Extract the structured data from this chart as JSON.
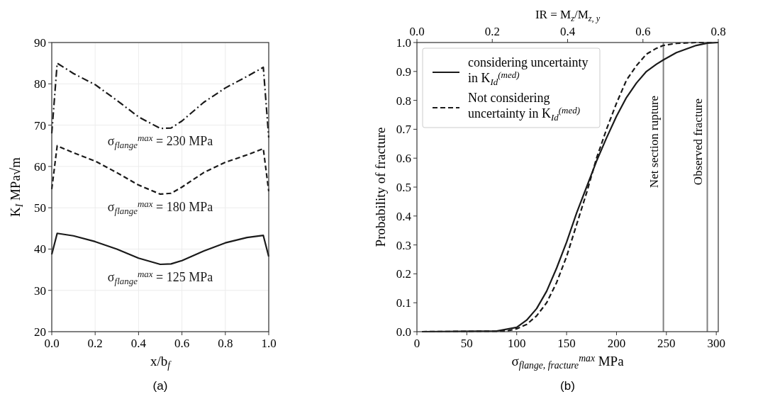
{
  "chart_data": [
    {
      "type": "line",
      "xlabel": "x/b$_{f}$",
      "ylabel": "K$_{I}$ MPa√m",
      "annotations": [
        "(a)"
      ],
      "xlim": [
        0,
        1
      ],
      "ylim": [
        20,
        90
      ],
      "xticks": [
        {
          "value": 0,
          "label": "0.0"
        },
        {
          "value": 0.2,
          "label": "0.2"
        },
        {
          "value": 0.4,
          "label": "0.4"
        },
        {
          "value": 0.6,
          "label": "0.6"
        },
        {
          "value": 0.8,
          "label": "0.8"
        },
        {
          "value": 1,
          "label": "1.0"
        }
      ],
      "yticks": [
        20,
        30,
        40,
        50,
        60,
        70,
        80,
        90
      ],
      "grid": true,
      "legend": false,
      "x": [
        0,
        0.025,
        0.1,
        0.2,
        0.3,
        0.4,
        0.5,
        0.55,
        0.6,
        0.7,
        0.8,
        0.9,
        0.975,
        1.0
      ],
      "series": [
        {
          "name": "σ$_{flange}$$^{max}$ = 230 MPa",
          "color": "#1a1a1a",
          "line_style": "dashdot",
          "values": [
            68,
            85,
            82.5,
            79.8,
            76,
            72,
            69.2,
            69.3,
            71,
            75.5,
            79,
            81.8,
            84,
            67
          ]
        },
        {
          "name": "σ$_{flange}$$^{max}$ = 180 MPa",
          "color": "#1a1a1a",
          "line_style": "dashed",
          "values": [
            54.5,
            65,
            63.3,
            61.3,
            58.5,
            55.5,
            53.3,
            53.5,
            55,
            58.5,
            61,
            62.8,
            64.3,
            54
          ]
        },
        {
          "name": "σ$_{flange}$$^{max}$ = 125 MPa",
          "color": "#1a1a1a",
          "line_style": "solid",
          "values": [
            38.7,
            43.8,
            43.2,
            41.8,
            40,
            37.8,
            36.3,
            36.4,
            37.2,
            39.5,
            41.5,
            42.8,
            43.3,
            38.2
          ]
        }
      ]
    },
    {
      "type": "line",
      "xlabel": "σ$_{flange, fracture}$$^{max}$ MPa",
      "ylabel": "Probability of fracture",
      "x2label": "IR = M$_{z}$/M$_{z, y}$",
      "annotations": [
        "(b)"
      ],
      "xlim": [
        0,
        302
      ],
      "ylim": [
        0,
        1
      ],
      "x2lim": [
        0,
        0.8
      ],
      "xticks": [
        0,
        50,
        100,
        150,
        200,
        250,
        300
      ],
      "x2ticks": [
        {
          "value": 0,
          "label": "0.0"
        },
        {
          "value": 0.2,
          "label": "0.2"
        },
        {
          "value": 0.4,
          "label": "0.4"
        },
        {
          "value": 0.6,
          "label": "0.6"
        },
        {
          "value": 0.8,
          "label": "0.8"
        }
      ],
      "yticks": [
        {
          "value": 0,
          "label": "0.0"
        },
        {
          "value": 0.1,
          "label": "0.1"
        },
        {
          "value": 0.2,
          "label": "0.2"
        },
        {
          "value": 0.3,
          "label": "0.3"
        },
        {
          "value": 0.4,
          "label": "0.4"
        },
        {
          "value": 0.5,
          "label": "0.5"
        },
        {
          "value": 0.6,
          "label": "0.6"
        },
        {
          "value": 0.7,
          "label": "0.7"
        },
        {
          "value": 0.8,
          "label": "0.8"
        },
        {
          "value": 0.9,
          "label": "0.9"
        },
        {
          "value": 1,
          "label": "1.0"
        }
      ],
      "grid": false,
      "legend": "top left",
      "ref_lines": [
        {
          "axis": "x",
          "value": 247,
          "label": "Net section rupture",
          "color": "#808080"
        },
        {
          "axis": "x",
          "value": 291,
          "label": "Observed fracture",
          "color": "#808080"
        }
      ],
      "series": [
        {
          "name": "considering uncertainty in K$_{Id}$$^{(med)}$",
          "color": "#1a1a1a",
          "line_style": "solid",
          "x": [
            5,
            80,
            100,
            110,
            120,
            130,
            140,
            150,
            160,
            170,
            180,
            190,
            200,
            210,
            220,
            230,
            240,
            247,
            260,
            280,
            291,
            302
          ],
          "values": [
            0,
            0.002,
            0.015,
            0.04,
            0.08,
            0.14,
            0.22,
            0.31,
            0.41,
            0.5,
            0.59,
            0.67,
            0.745,
            0.81,
            0.86,
            0.9,
            0.925,
            0.94,
            0.965,
            0.99,
            0.998,
            1
          ]
        },
        {
          "name": "Not considering uncertainty in K$_{Id}$$^{(med)}$",
          "color": "#1a1a1a",
          "line_style": "dashed",
          "x": [
            5,
            90,
            100,
            110,
            120,
            130,
            140,
            150,
            160,
            170,
            180,
            190,
            200,
            210,
            220,
            230,
            240,
            247,
            260,
            280,
            302
          ],
          "values": [
            0,
            0.002,
            0.01,
            0.025,
            0.055,
            0.1,
            0.17,
            0.26,
            0.37,
            0.48,
            0.6,
            0.7,
            0.79,
            0.87,
            0.92,
            0.96,
            0.98,
            0.99,
            0.997,
            1,
            1
          ]
        }
      ]
    }
  ]
}
